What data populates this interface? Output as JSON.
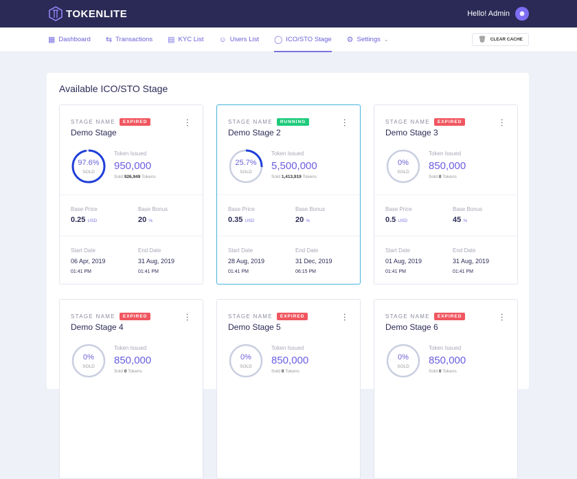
{
  "header": {
    "brand": "TOKENLITE",
    "greeting": "Hello! Admin",
    "logo_icon": "hexagon-logo",
    "avatar_icon": "user-icon"
  },
  "nav": {
    "items": [
      {
        "label": "Dashboard",
        "icon": "grid-icon",
        "active": false
      },
      {
        "label": "Transactions",
        "icon": "arrows-icon",
        "active": false
      },
      {
        "label": "KYC List",
        "icon": "document-icon",
        "active": false
      },
      {
        "label": "Users List",
        "icon": "users-icon",
        "active": false
      },
      {
        "label": "ICO/STO Stage",
        "icon": "coins-icon",
        "active": true
      },
      {
        "label": "Settings",
        "icon": "gear-icon",
        "active": false
      }
    ],
    "clear_cache": "CLEAR CACHE"
  },
  "colors": {
    "accent": "#6a5ce0",
    "expired": "#f0565f",
    "running": "#1ecb7b",
    "ring": "#1f3fd8",
    "ring_track": "#c9cfe0"
  },
  "main": {
    "title": "Available ICO/STO Stage",
    "labels": {
      "stage_name": "STAGE NAME",
      "token_issued": "Token Issued",
      "sold": "SOLD",
      "sold_prefix": "Sold",
      "tokens": "Tokens",
      "base_price": "Base Price",
      "base_bonus": "Base Bonus",
      "start_date": "Start Date",
      "end_date": "End Date",
      "currency": "USD",
      "percent": "%"
    },
    "stages": [
      {
        "status": "EXPIRED",
        "name": "Demo Stage",
        "percent": 97.6,
        "percent_label": "97.6%",
        "issued": "950,000",
        "sold": "926,949",
        "price": "0.25",
        "bonus": "20",
        "start": "06 Apr, 2019",
        "start_time": "01:41 PM",
        "end": "31 Aug, 2019",
        "end_time": "01:41 PM"
      },
      {
        "status": "RUNNING",
        "name": "Demo Stage 2",
        "percent": 25.7,
        "percent_label": "25.7%",
        "issued": "5,500,000",
        "sold": "1,413,919",
        "price": "0.35",
        "bonus": "20",
        "start": "28 Aug, 2019",
        "start_time": "01:41 PM",
        "end": "31 Dec, 2019",
        "end_time": "06:15 PM"
      },
      {
        "status": "EXPIRED",
        "name": "Demo Stage 3",
        "percent": 0,
        "percent_label": "0%",
        "issued": "850,000",
        "sold": "0",
        "price": "0.5",
        "bonus": "45",
        "start": "01 Aug, 2019",
        "start_time": "01:41 PM",
        "end": "31 Aug, 2019",
        "end_time": "01:41 PM"
      },
      {
        "status": "EXPIRED",
        "name": "Demo Stage 4",
        "percent": 0,
        "percent_label": "0%",
        "issued": "850,000",
        "sold": "0"
      },
      {
        "status": "EXPIRED",
        "name": "Demo Stage 5",
        "percent": 0,
        "percent_label": "0%",
        "issued": "850,000",
        "sold": "0"
      },
      {
        "status": "EXPIRED",
        "name": "Demo Stage 6",
        "percent": 0,
        "percent_label": "0%",
        "issued": "850,000",
        "sold": "0"
      }
    ]
  }
}
